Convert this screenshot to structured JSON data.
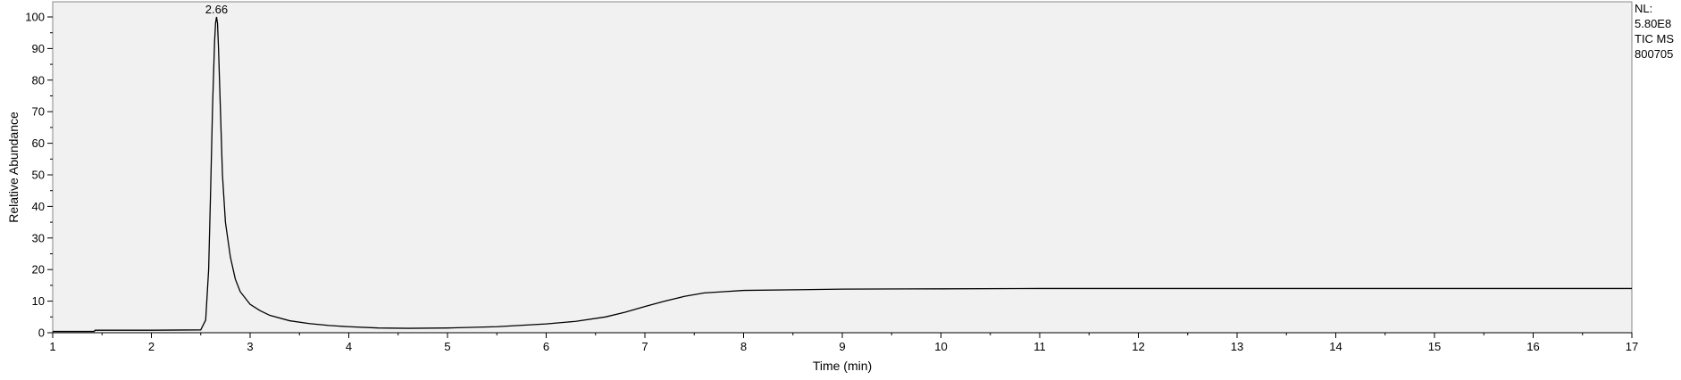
{
  "chart_data": {
    "type": "line",
    "title": "",
    "xlabel": "Time (min)",
    "ylabel": "Relative Abundance",
    "xlim": [
      1,
      17
    ],
    "ylim": [
      0,
      100
    ],
    "x_ticks": [
      1,
      2,
      3,
      4,
      5,
      6,
      7,
      8,
      9,
      10,
      11,
      12,
      13,
      14,
      15,
      16,
      17
    ],
    "y_ticks": [
      0,
      10,
      20,
      30,
      40,
      50,
      60,
      70,
      80,
      90,
      100
    ],
    "grid": false,
    "background_color": "#f1f1f1",
    "line_color": "#000000",
    "series": [
      {
        "x": [
          1.0,
          1.42,
          1.43,
          2.0,
          2.5,
          2.55,
          2.58,
          2.6,
          2.62,
          2.64,
          2.65,
          2.66,
          2.67,
          2.68,
          2.7,
          2.72,
          2.75,
          2.8,
          2.85,
          2.9,
          3.0,
          3.1,
          3.2,
          3.4,
          3.6,
          3.8,
          4.0,
          4.3,
          4.6,
          5.0,
          5.5,
          6.0,
          6.3,
          6.6,
          6.8,
          7.0,
          7.2,
          7.4,
          7.6,
          7.8,
          8.0,
          8.5,
          9.0,
          10.0,
          11.0,
          12.0,
          13.0,
          14.0,
          15.0,
          16.0,
          17.0
        ],
        "y": [
          0.4,
          0.4,
          0.8,
          0.8,
          0.9,
          4,
          20,
          45,
          72,
          92,
          98,
          100,
          98,
          90,
          70,
          50,
          35,
          24,
          17,
          13,
          9,
          7,
          5.5,
          3.8,
          2.9,
          2.3,
          1.9,
          1.5,
          1.4,
          1.5,
          1.9,
          2.8,
          3.6,
          5.0,
          6.5,
          8.3,
          10.0,
          11.5,
          12.6,
          13.0,
          13.4,
          13.6,
          13.8,
          13.9,
          14.0,
          14.0,
          14.0,
          14.0,
          14.0,
          14.0,
          14.0
        ]
      }
    ],
    "annotations": [
      {
        "text": "2.66",
        "x": 2.66,
        "y": 100
      }
    ],
    "side_notes": [
      "NL:",
      "5.80E8",
      "TIC  MS",
      "800705"
    ]
  }
}
